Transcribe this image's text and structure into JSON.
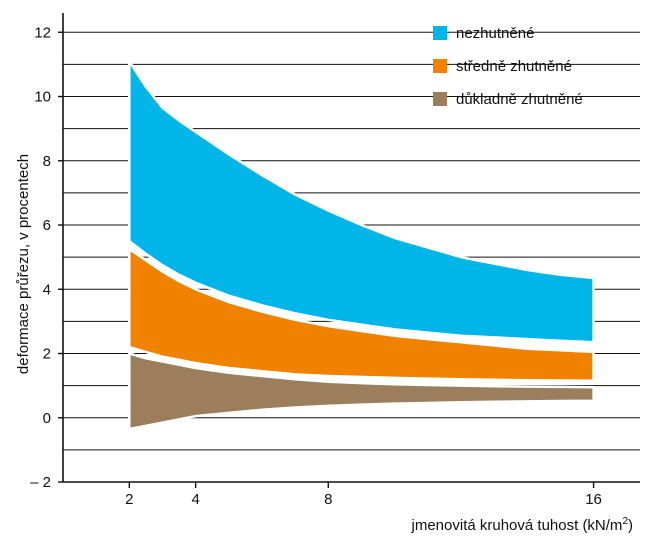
{
  "chart_data": {
    "type": "area",
    "title": "",
    "xlabel": "jmenovitá kruhová tuhost (kN/m²)",
    "ylabel": "deformace průřezu, v procentech",
    "xlim": [
      0,
      17.4
    ],
    "ylim": [
      -2,
      12.6
    ],
    "xticks": [
      2,
      4,
      8,
      16
    ],
    "yticks": [
      -2,
      0,
      2,
      4,
      6,
      8,
      10,
      12
    ],
    "ytick_labels": [
      "– 2",
      "0",
      "2",
      "4",
      "6",
      "8",
      "10",
      "12"
    ],
    "grid": "horizontal lines every 1 unit",
    "legend_position": "top-right",
    "series": [
      {
        "name": "nezhutněné",
        "color": "#00b5e8",
        "x": [
          2,
          2.5,
          3,
          3.5,
          4,
          5,
          6,
          7,
          8,
          9,
          10,
          11,
          12,
          13,
          14,
          15,
          16
        ],
        "upper": [
          11.1,
          10.3,
          9.65,
          9.25,
          8.9,
          8.2,
          7.55,
          6.95,
          6.45,
          6.0,
          5.6,
          5.3,
          5.0,
          4.8,
          4.6,
          4.45,
          4.35
        ],
        "lower": [
          5.5,
          5.1,
          4.75,
          4.45,
          4.2,
          3.8,
          3.5,
          3.25,
          3.05,
          2.9,
          2.75,
          2.65,
          2.55,
          2.5,
          2.45,
          2.4,
          2.35
        ]
      },
      {
        "name": "středně zhutněné",
        "color": "#f08200",
        "x": [
          2,
          2.5,
          3,
          3.5,
          4,
          5,
          6,
          7,
          8,
          9,
          10,
          11,
          12,
          13,
          14,
          15,
          16
        ],
        "upper": [
          5.25,
          4.9,
          4.55,
          4.25,
          4.0,
          3.6,
          3.3,
          3.05,
          2.85,
          2.7,
          2.55,
          2.45,
          2.35,
          2.25,
          2.15,
          2.1,
          2.05
        ],
        "lower": [
          2.2,
          2.05,
          1.9,
          1.8,
          1.7,
          1.55,
          1.45,
          1.35,
          1.3,
          1.27,
          1.24,
          1.22,
          1.2,
          1.18,
          1.17,
          1.16,
          1.15
        ]
      },
      {
        "name": "důkladně zhutněné",
        "color": "#9c7e5c",
        "x": [
          2,
          2.5,
          3,
          3.5,
          4,
          5,
          6,
          7,
          8,
          9,
          10,
          11,
          12,
          13,
          14,
          15,
          16
        ],
        "upper": [
          2.0,
          1.85,
          1.75,
          1.65,
          1.55,
          1.4,
          1.3,
          1.2,
          1.12,
          1.08,
          1.04,
          1.02,
          1.0,
          0.98,
          0.97,
          0.96,
          0.95
        ],
        "lower": [
          -0.35,
          -0.25,
          -0.15,
          -0.05,
          0.05,
          0.15,
          0.25,
          0.32,
          0.37,
          0.41,
          0.44,
          0.46,
          0.48,
          0.5,
          0.51,
          0.52,
          0.53
        ]
      }
    ]
  }
}
